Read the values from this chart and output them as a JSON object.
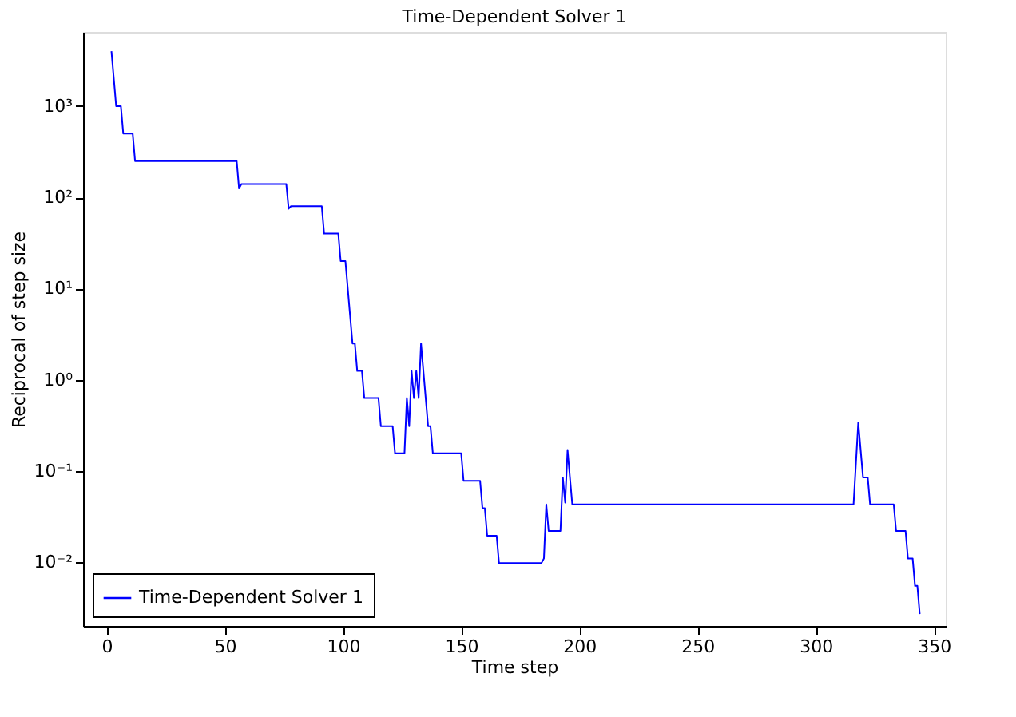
{
  "chart_data": {
    "type": "line",
    "title": "Time-Dependent Solver 1",
    "xlabel": "Time step",
    "ylabel": "Reciprocal of step size",
    "xlim": [
      -10,
      355
    ],
    "xticks": [
      0,
      50,
      100,
      150,
      200,
      250,
      300,
      350
    ],
    "ylim": [
      0.002,
      6500
    ],
    "log": "y",
    "yticks": [
      {
        "value": 0.01,
        "label": "10⁻²"
      },
      {
        "value": 0.1,
        "label": "10⁻¹"
      },
      {
        "value": 1,
        "label": "10⁰"
      },
      {
        "value": 10,
        "label": "10¹"
      },
      {
        "value": 100,
        "label": "10²"
      },
      {
        "value": 1000,
        "label": "10³"
      }
    ],
    "grid": false,
    "legend": "bottom left",
    "marker": "none",
    "line_style": "solid",
    "series": [
      {
        "name": "Time-Dependent Solver 1",
        "color": "#0000ff",
        "x": [
          2,
          4,
          6,
          7,
          11,
          12,
          55,
          56,
          57,
          76,
          77,
          78,
          91,
          92,
          98,
          99,
          101,
          102,
          103,
          104,
          105,
          106,
          108,
          109,
          115,
          116,
          121,
          122,
          126,
          127,
          128,
          129,
          130,
          131,
          132,
          133,
          136,
          137,
          138,
          150,
          151,
          158,
          159,
          160,
          161,
          165,
          166,
          184,
          185,
          186,
          187,
          192,
          193,
          194,
          195,
          197,
          316,
          318,
          320,
          322,
          323,
          333,
          334,
          338,
          339,
          341,
          342,
          343,
          344
        ],
        "values": [
          4000,
          1000,
          1000,
          500,
          500,
          250,
          250,
          125,
          140,
          140,
          75,
          80,
          80,
          40,
          40,
          20,
          20,
          10,
          5,
          2.5,
          2.5,
          1.25,
          1.25,
          0.63,
          0.63,
          0.31,
          0.31,
          0.156,
          0.156,
          0.63,
          0.31,
          1.25,
          0.63,
          1.25,
          0.63,
          2.5,
          0.31,
          0.31,
          0.156,
          0.156,
          0.078,
          0.078,
          0.039,
          0.039,
          0.0195,
          0.0195,
          0.0098,
          0.0098,
          0.011,
          0.043,
          0.022,
          0.022,
          0.085,
          0.045,
          0.17,
          0.043,
          0.043,
          0.34,
          0.085,
          0.085,
          0.043,
          0.043,
          0.022,
          0.022,
          0.011,
          0.011,
          0.0055,
          0.0055,
          0.0027
        ]
      }
    ]
  }
}
